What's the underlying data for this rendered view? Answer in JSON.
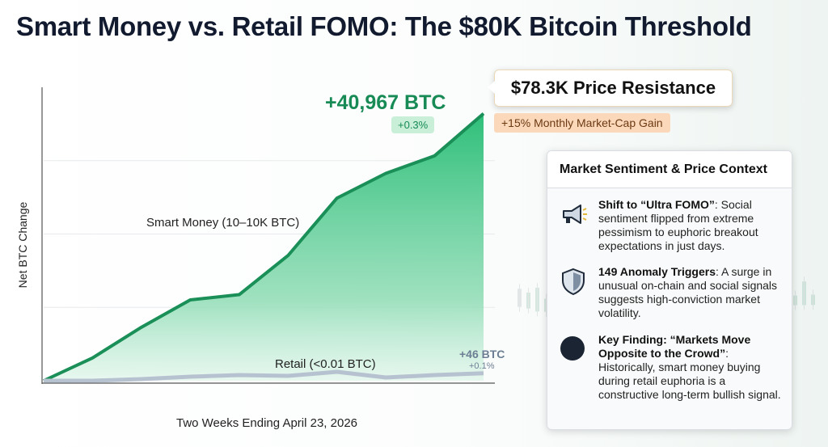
{
  "title": "Smart Money vs. Retail FOMO: The $80K Bitcoin Threshold",
  "chart_data": {
    "type": "area",
    "title": "Smart Money vs. Retail FOMO: The $80K Bitcoin Threshold",
    "xlabel": "Two Weeks Ending April 23, 2026",
    "ylabel": "Net BTC Change",
    "x": [
      1,
      2,
      3,
      4,
      5,
      6,
      7,
      8,
      9,
      10
    ],
    "ylim": [
      0,
      45000
    ],
    "grid": true,
    "series": [
      {
        "name": "Smart Money (10–10K BTC)",
        "values": [
          0,
          3500,
          8200,
          12400,
          13200,
          19200,
          28000,
          31800,
          34500,
          40967
        ],
        "end_label": "+40,967 BTC",
        "end_pct": "+0.3%"
      },
      {
        "name": "Retail (<0.01 BTC)",
        "values": [
          0,
          0,
          10,
          25,
          35,
          30,
          55,
          20,
          35,
          46
        ],
        "end_label": "+46 BTC",
        "end_pct": "+0.1%"
      }
    ],
    "annotations": {
      "price_callout": "$78.3K Price Resistance",
      "gain_badge": "+15% Monthly Market-Cap Gain"
    }
  },
  "panel": {
    "title": "Market Sentiment & Price Context",
    "items": [
      {
        "icon": "megaphone-icon",
        "bold": "Shift to “Ultra FOMO”",
        "text": ": Social sentiment flipped from extreme pessimism to euphoric breakout expectations in just days."
      },
      {
        "icon": "shield-icon",
        "bold": "149 Anomaly Triggers",
        "text": ": A surge in unusual on-chain and social signals suggests high-conviction market volatility."
      },
      {
        "icon": "circle-icon",
        "bold": "Key Finding: “Markets Move Opposite to the Crowd”",
        "text": ": Historically, smart money buying during retail euphoria is a constructive long-term bullish signal."
      }
    ]
  }
}
